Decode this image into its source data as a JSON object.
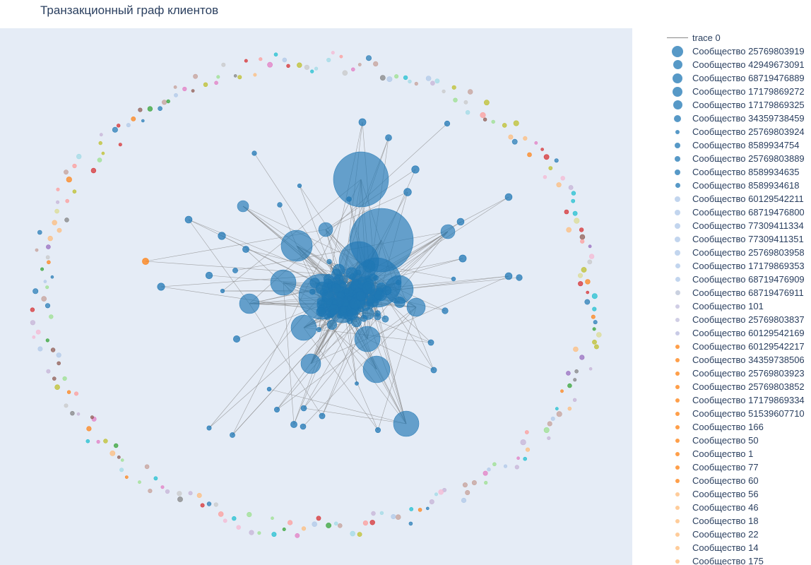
{
  "chart_data": {
    "type": "scatter",
    "title": "Транзакционный граф клиентов",
    "background": "#e5ecf6",
    "edge_color": "#888888",
    "node_color": "#1f77b4",
    "legend_placement": "right",
    "grid": false,
    "legend": [
      {
        "label": "trace 0",
        "kind": "line",
        "color": "#888888"
      },
      {
        "label": "Сообщество 25769803919",
        "kind": "marker",
        "color": "#1f77b4",
        "size": 16
      },
      {
        "label": "Сообщество 42949673091",
        "kind": "marker",
        "color": "#1f77b4",
        "size": 13
      },
      {
        "label": "Сообщество 68719476889",
        "kind": "marker",
        "color": "#1f77b4",
        "size": 14
      },
      {
        "label": "Сообщество 17179869272",
        "kind": "marker",
        "color": "#1f77b4",
        "size": 14
      },
      {
        "label": "Сообщество 17179869325",
        "kind": "marker",
        "color": "#1f77b4",
        "size": 13
      },
      {
        "label": "Сообщество 34359738459",
        "kind": "marker",
        "color": "#1f77b4",
        "size": 10
      },
      {
        "label": "Сообщество 25769803924",
        "kind": "marker",
        "color": "#1f77b4",
        "size": 6
      },
      {
        "label": "Сообщество 8589934754",
        "kind": "marker",
        "color": "#1f77b4",
        "size": 8
      },
      {
        "label": "Сообщество 25769803889",
        "kind": "marker",
        "color": "#1f77b4",
        "size": 8
      },
      {
        "label": "Сообщество 8589934635",
        "kind": "marker",
        "color": "#1f77b4",
        "size": 8
      },
      {
        "label": "Сообщество 8589934618",
        "kind": "marker",
        "color": "#1f77b4",
        "size": 7
      },
      {
        "label": "Сообщество 60129542211",
        "kind": "marker",
        "color": "#aec7e8",
        "size": 8
      },
      {
        "label": "Сообщество 68719476800",
        "kind": "marker",
        "color": "#aec7e8",
        "size": 8
      },
      {
        "label": "Сообщество 77309411334",
        "kind": "marker",
        "color": "#aec7e8",
        "size": 8
      },
      {
        "label": "Сообщество 77309411351",
        "kind": "marker",
        "color": "#aec7e8",
        "size": 8
      },
      {
        "label": "Сообщество 25769803958",
        "kind": "marker",
        "color": "#aec7e8",
        "size": 8
      },
      {
        "label": "Сообщество 17179869353",
        "kind": "marker",
        "color": "#aec7e8",
        "size": 7
      },
      {
        "label": "Сообщество 68719476909",
        "kind": "marker",
        "color": "#aec7e8",
        "size": 7
      },
      {
        "label": "Сообщество 68719476911",
        "kind": "marker",
        "color": "#b8c2d6",
        "size": 7
      },
      {
        "label": "Сообщество 101",
        "kind": "marker",
        "color": "#c0bedc",
        "size": 6
      },
      {
        "label": "Сообщество 25769803837",
        "kind": "marker",
        "color": "#c0bedc",
        "size": 6
      },
      {
        "label": "Сообщество 60129542169",
        "kind": "marker",
        "color": "#b7b9dd",
        "size": 6
      },
      {
        "label": "Сообщество 60129542217",
        "kind": "marker",
        "color": "#ff7f0e",
        "size": 6
      },
      {
        "label": "Сообщество 34359738506",
        "kind": "marker",
        "color": "#ff7f0e",
        "size": 6
      },
      {
        "label": "Сообщество 25769803923",
        "kind": "marker",
        "color": "#ff7f0e",
        "size": 6
      },
      {
        "label": "Сообщество 25769803852",
        "kind": "marker",
        "color": "#ff7f0e",
        "size": 6
      },
      {
        "label": "Сообщество 17179869334",
        "kind": "marker",
        "color": "#ff7f0e",
        "size": 6
      },
      {
        "label": "Сообщество 51539607710",
        "kind": "marker",
        "color": "#ff7f0e",
        "size": 6
      },
      {
        "label": "Сообщество 166",
        "kind": "marker",
        "color": "#ff7f0e",
        "size": 6
      },
      {
        "label": "Сообщество 50",
        "kind": "marker",
        "color": "#ff7f0e",
        "size": 6
      },
      {
        "label": "Сообщество 1",
        "kind": "marker",
        "color": "#ff7f0e",
        "size": 6
      },
      {
        "label": "Сообщество 77",
        "kind": "marker",
        "color": "#ff7f0e",
        "size": 6
      },
      {
        "label": "Сообщество 60",
        "kind": "marker",
        "color": "#ff7f0e",
        "size": 6
      },
      {
        "label": "Сообщество 56",
        "kind": "marker",
        "color": "#ffbb78",
        "size": 6
      },
      {
        "label": "Сообщество 46",
        "kind": "marker",
        "color": "#ffbb78",
        "size": 6
      },
      {
        "label": "Сообщество 18",
        "kind": "marker",
        "color": "#ffbb78",
        "size": 6
      },
      {
        "label": "Сообщество 22",
        "kind": "marker",
        "color": "#ffbb78",
        "size": 6
      },
      {
        "label": "Сообщество 14",
        "kind": "marker",
        "color": "#ffbb78",
        "size": 6
      },
      {
        "label": "Сообщество 175",
        "kind": "marker",
        "color": "#ffbb78",
        "size": 6
      }
    ],
    "ring_palette": [
      "#aec7e8",
      "#ff7f0e",
      "#ffbb78",
      "#2ca02c",
      "#98df8a",
      "#d62728",
      "#ff9896",
      "#9467bd",
      "#c5b0d5",
      "#8c564b",
      "#c49c94",
      "#e377c2",
      "#f7b6d2",
      "#7f7f7f",
      "#c7c7c7",
      "#bcbd22",
      "#dbdb8d",
      "#17becf",
      "#9edae5",
      "#1f77b4"
    ]
  }
}
